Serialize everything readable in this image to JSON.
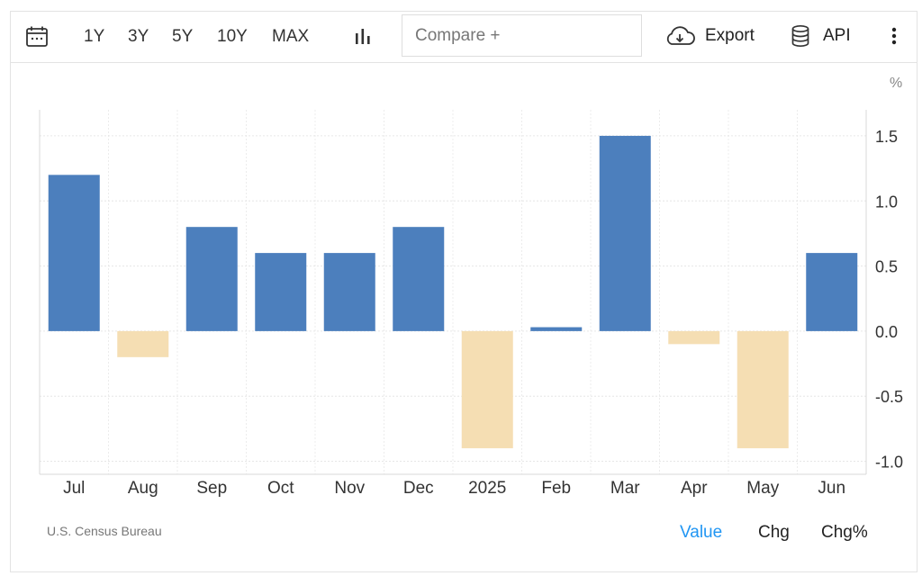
{
  "toolbar": {
    "icons": {
      "calendar": "calendar-icon",
      "chart_type": "bar-chart-icon",
      "export": "cloud-download-icon",
      "api": "database-icon",
      "more": "kebab-menu-icon"
    },
    "ranges": [
      "1Y",
      "3Y",
      "5Y",
      "10Y",
      "MAX"
    ],
    "compare_placeholder": "Compare +",
    "export_label": "Export",
    "api_label": "API"
  },
  "chart_data": {
    "type": "bar",
    "unit": "%",
    "categories": [
      "Jul",
      "Aug",
      "Sep",
      "Oct",
      "Nov",
      "Dec",
      "2025",
      "Feb",
      "Mar",
      "Apr",
      "May",
      "Jun"
    ],
    "values": [
      1.2,
      -0.2,
      0.8,
      0.6,
      0.6,
      0.8,
      -0.9,
      0.03,
      1.5,
      -0.1,
      -0.9,
      0.6
    ],
    "ylim": [
      -1.1,
      1.7
    ],
    "yticks": [
      1.5,
      1.0,
      0.5,
      0.0,
      -0.5,
      -1.0
    ],
    "ytick_labels": [
      "1.5",
      "1.0",
      "0.5",
      "0.0",
      "-0.5",
      "-1.0"
    ],
    "grid": true,
    "colors": {
      "positive": "#4c7fbd",
      "negative": "#f5deb3"
    }
  },
  "footer": {
    "source": "U.S. Census Bureau",
    "tabs": [
      "Value",
      "Chg",
      "Chg%"
    ],
    "active_tab": "Value",
    "active_color": "#2196f3"
  }
}
